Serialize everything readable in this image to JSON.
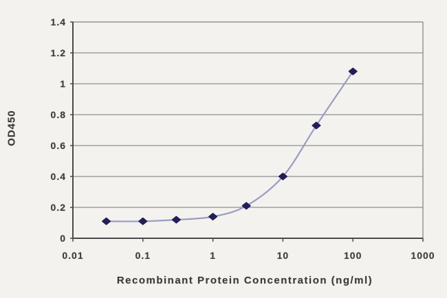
{
  "chart_data": {
    "type": "line",
    "title": "",
    "xlabel": "Recombinant Protein Concentration (ng/ml)",
    "ylabel": "OD450",
    "xscale": "log",
    "xlim": [
      0.01,
      1000
    ],
    "ylim": [
      0,
      1.4
    ],
    "x": [
      0.03,
      0.1,
      0.3,
      1,
      3,
      10,
      30,
      100
    ],
    "y": [
      0.11,
      0.11,
      0.12,
      0.14,
      0.21,
      0.4,
      0.73,
      1.08
    ],
    "xticks": [
      0.01,
      0.1,
      1,
      10,
      100,
      1000
    ],
    "xtick_labels": [
      "0.01",
      "0.1",
      "1",
      "10",
      "100",
      "1000"
    ],
    "yticks": [
      0,
      0.2,
      0.4,
      0.6,
      0.8,
      1,
      1.2,
      1.4
    ],
    "ytick_labels": [
      "0",
      "0.2",
      "0.4",
      "0.6",
      "0.8",
      "1",
      "1.2",
      "1.4"
    ],
    "grid": "horizontal",
    "legend": "none",
    "marker": "diamond",
    "colors": {
      "background": "#f3f2ee",
      "line": "#9b9bc2",
      "marker": "#231e57",
      "axis": "#4a4a4a",
      "grid": "#8f8f8f",
      "text": "#3b3b3b"
    }
  }
}
